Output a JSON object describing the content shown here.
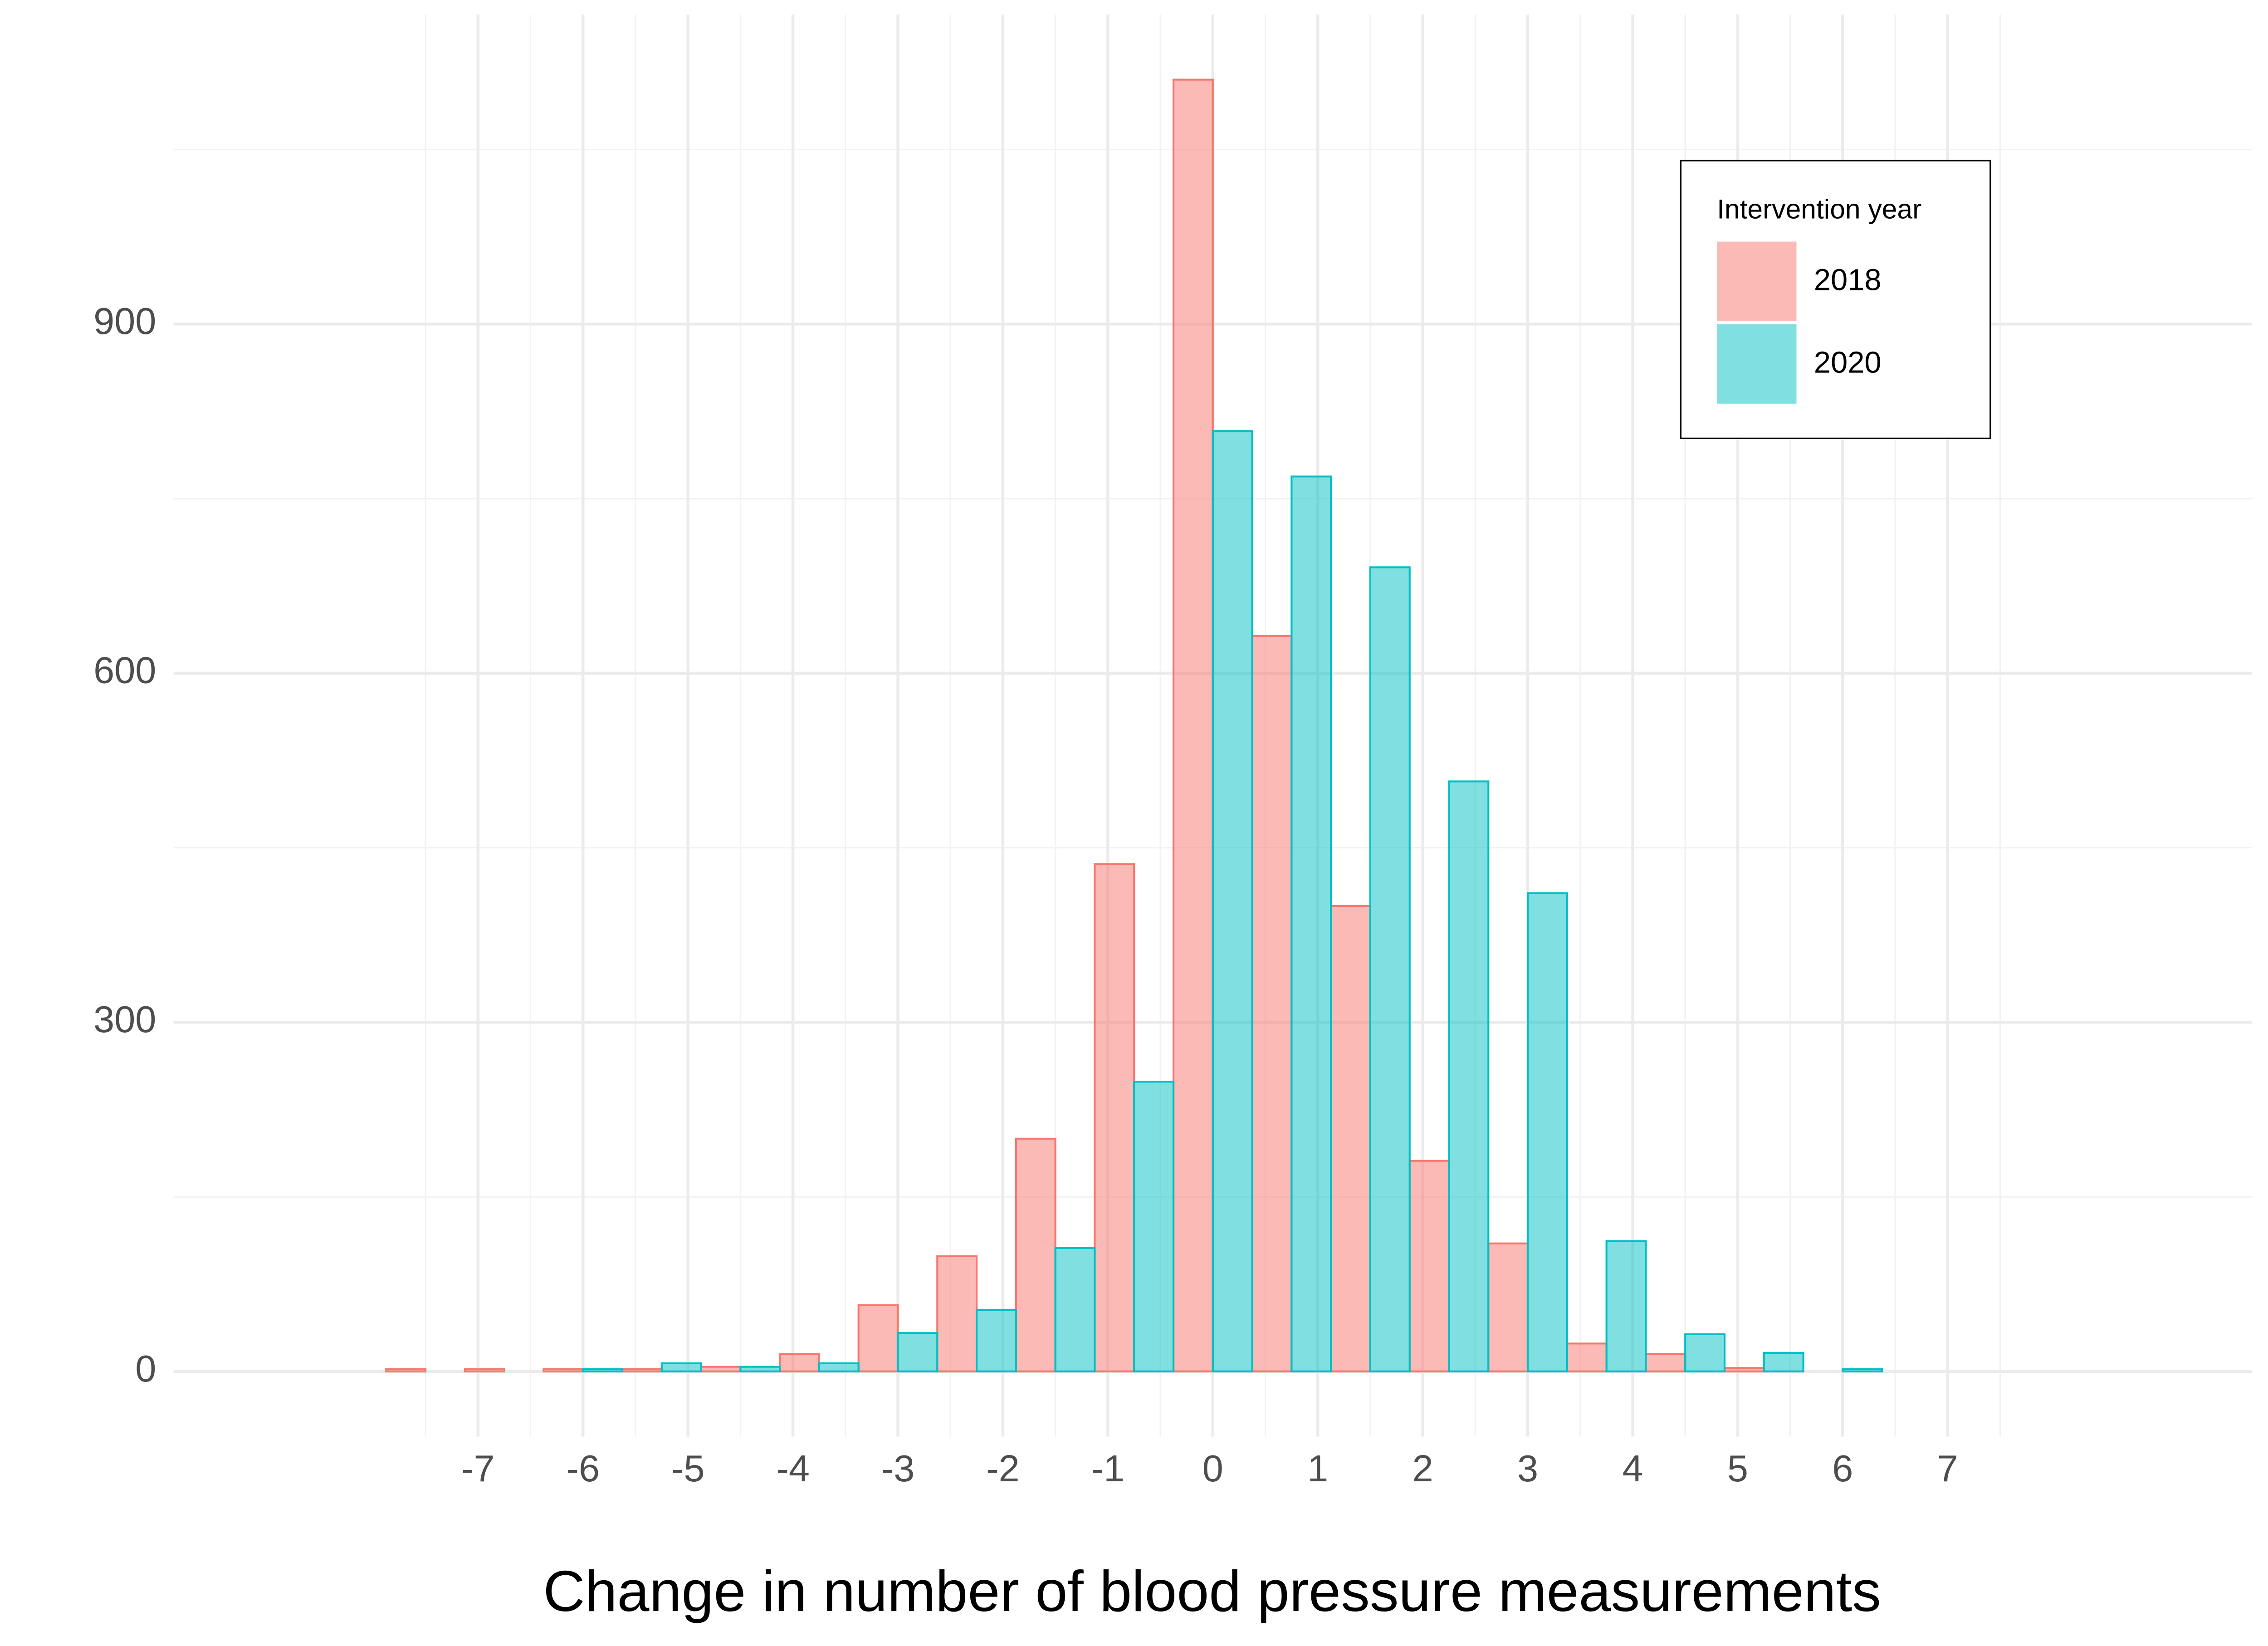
{
  "chart_data": {
    "type": "histogram",
    "x_label": "Change in number of blood pressure measurements",
    "bins": [
      -9.375,
      -8.625,
      -7.875,
      -7.125,
      -6.375,
      -5.625,
      -4.875,
      -4.125,
      -3.375,
      -2.625,
      -1.875,
      -1.125,
      -0.375,
      0.375,
      1.125,
      1.875,
      2.625,
      3.375,
      4.125,
      4.875,
      5.625,
      6.375,
      7.125,
      7.875,
      8.625,
      9.375
    ],
    "series": [
      {
        "name": "2018",
        "color": "#F8766D",
        "values": [
          0,
          0,
          2,
          2,
          2,
          2,
          4,
          15,
          57,
          99,
          200,
          436,
          1110,
          632,
          400,
          181,
          110,
          24,
          15,
          3,
          0,
          0,
          0,
          0,
          0
        ]
      },
      {
        "name": "2020",
        "color": "#00BFC4",
        "values": [
          0,
          0,
          0,
          0,
          2,
          7,
          4,
          7,
          33,
          53,
          106,
          249,
          808,
          769,
          691,
          507,
          411,
          112,
          32,
          16,
          2,
          0,
          0,
          0,
          0
        ]
      }
    ],
    "legend_title": "Intervention year",
    "legend_position": "top-right",
    "xlim": [
      -9.9,
      9.9
    ],
    "xticks": [
      -7,
      -6,
      -5,
      -4,
      -3,
      -2,
      -1,
      0,
      1,
      2,
      3,
      4,
      5,
      6,
      7
    ],
    "ylim": [
      -56,
      1166
    ],
    "yticks": [
      0,
      300,
      600,
      900
    ],
    "grid": true
  }
}
